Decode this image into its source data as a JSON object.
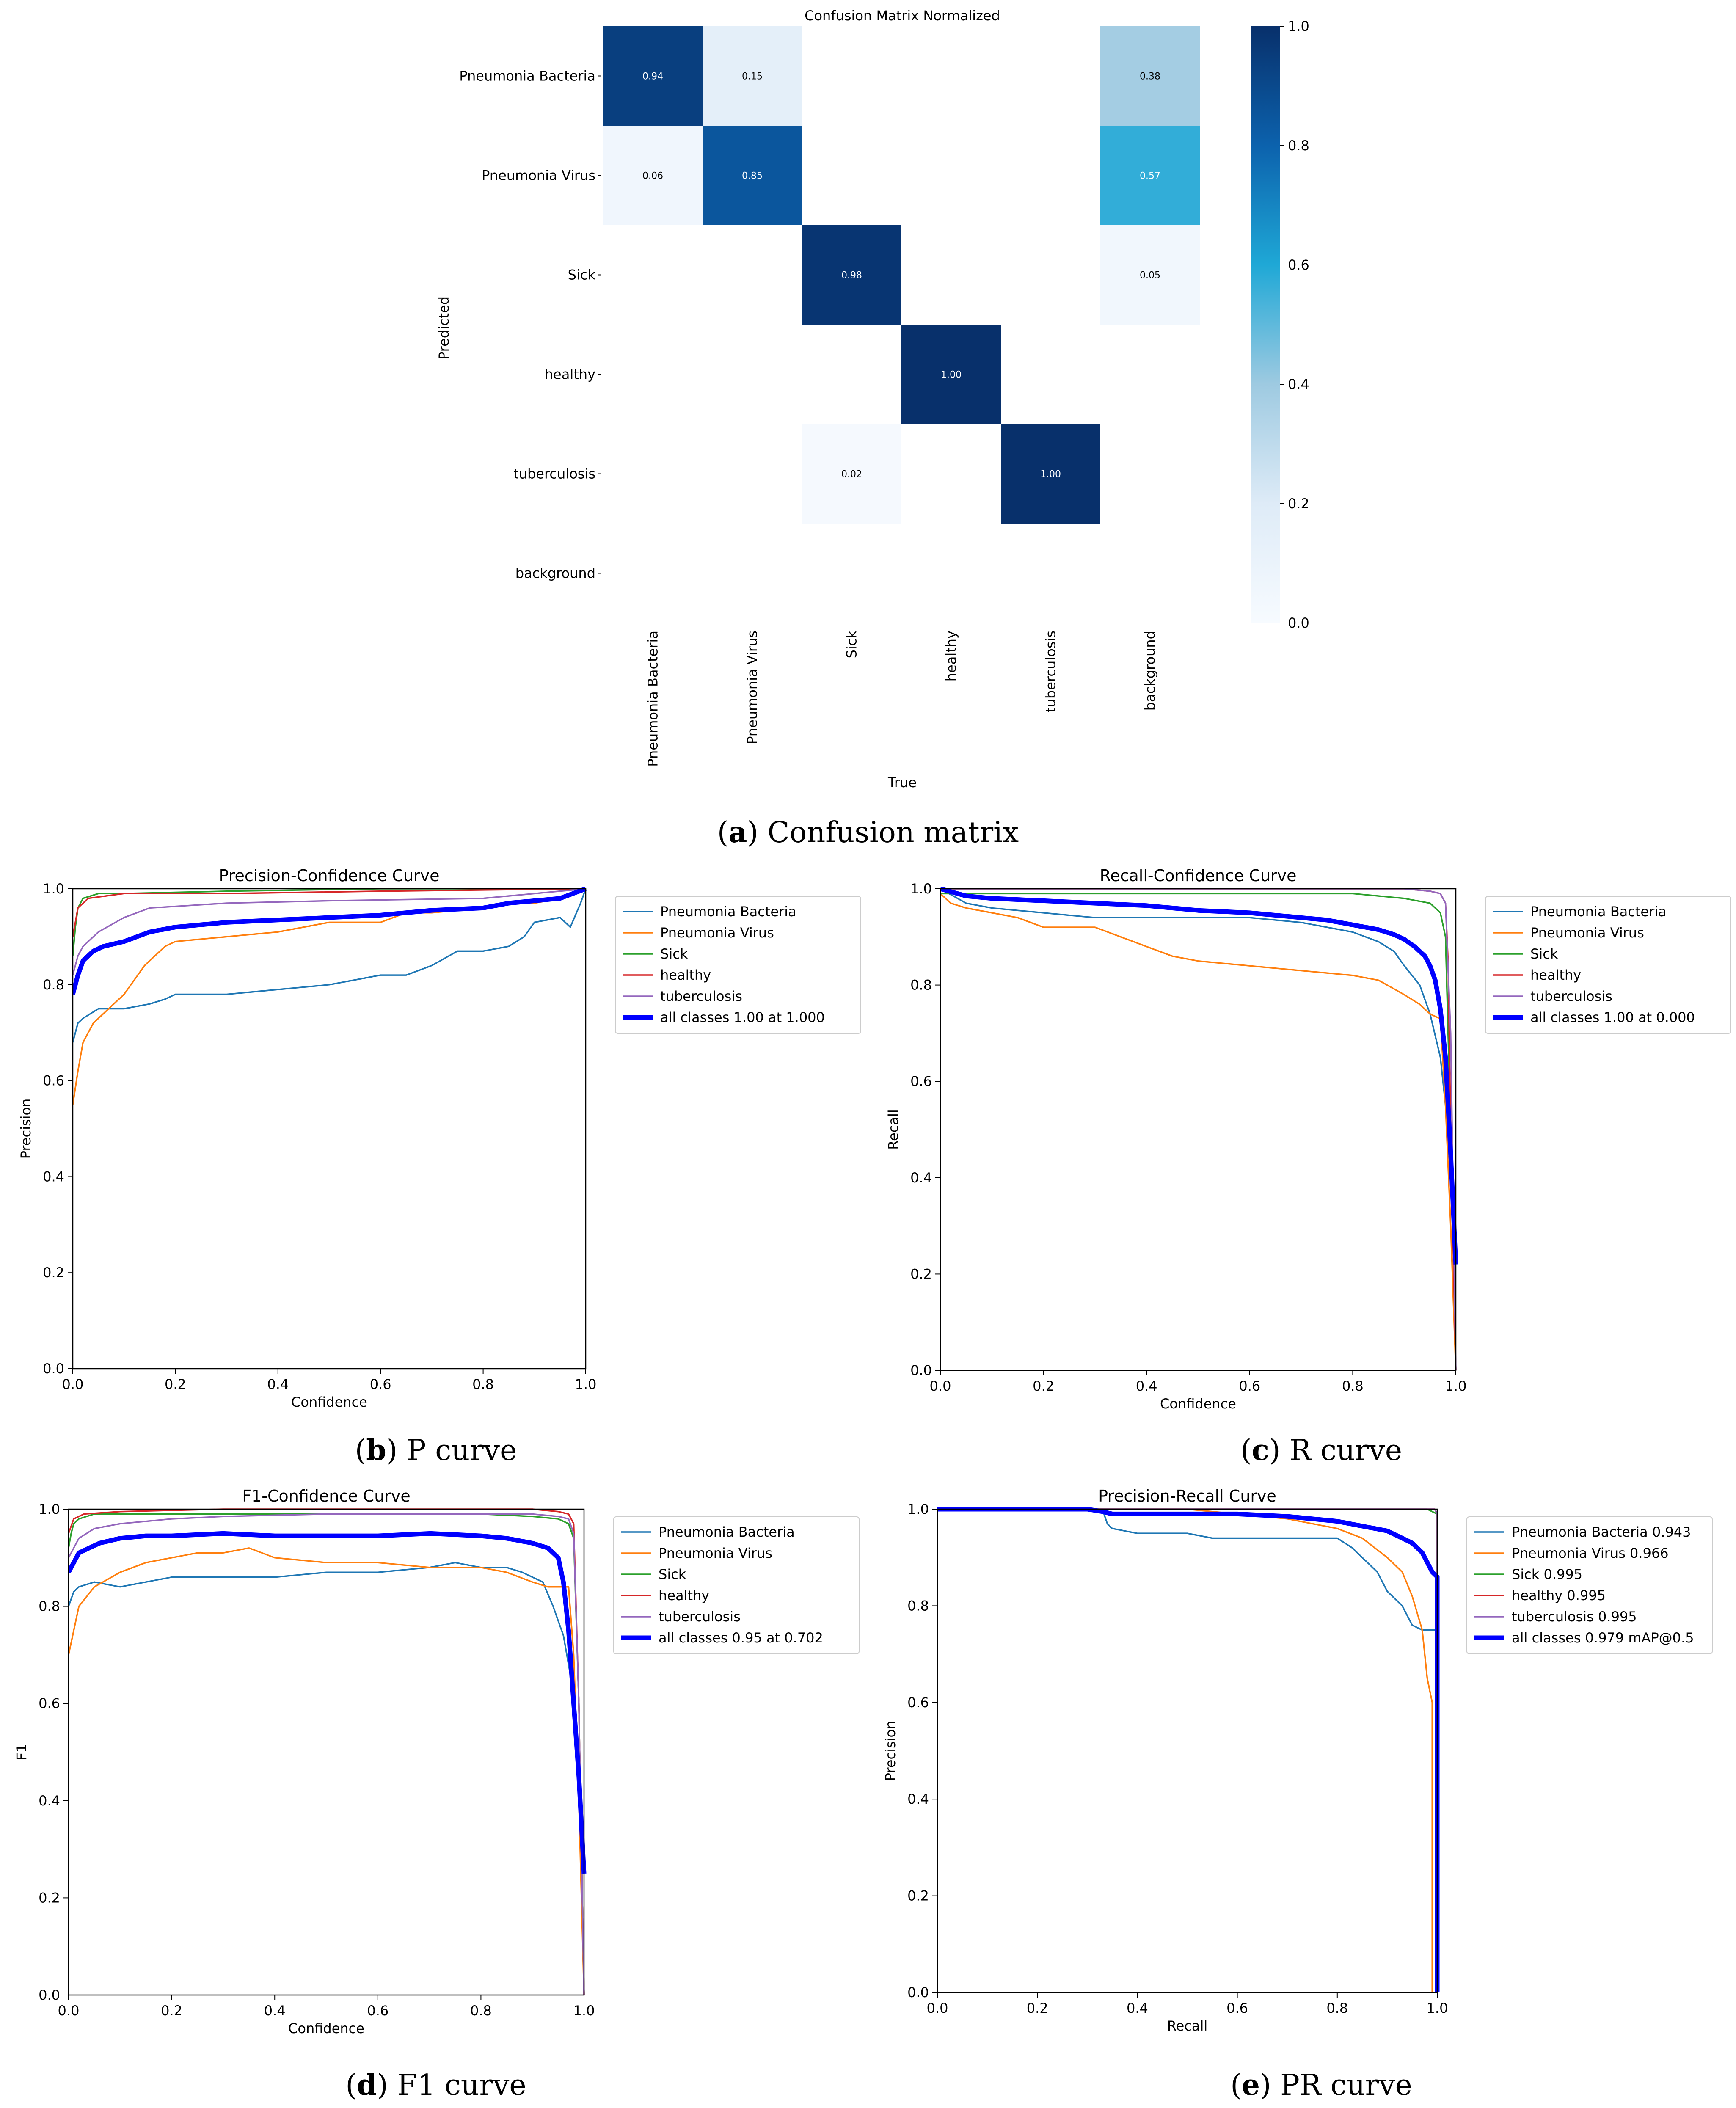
{
  "colors": {
    "Pneumonia Bacteria": "#1f77b4",
    "Pneumonia Virus": "#ff7f0e",
    "Sick": "#2ca02c",
    "healthy": "#d62728",
    "tuberculosis": "#9467bd",
    "all classes": "#0000ff",
    "cmap": [
      "#f7fbff",
      "#deebf7",
      "#9ecae1",
      "#1fa8d6",
      "#0c62ad",
      "#08306b"
    ]
  },
  "captions": {
    "a": {
      "letter": "a",
      "text": " Confusion matrix"
    },
    "b": {
      "letter": "b",
      "text": " P curve"
    },
    "c": {
      "letter": "c",
      "text": " R curve"
    },
    "d": {
      "letter": "d",
      "text": " F1 curve"
    },
    "e": {
      "letter": "e",
      "text": " PR curve"
    }
  },
  "chart_data": [
    {
      "id": "confusion",
      "type": "heatmap",
      "title": "Confusion Matrix Normalized",
      "xlabel": "True",
      "ylabel": "Predicted",
      "row_labels": [
        "Pneumonia Bacteria",
        "Pneumonia Virus",
        "Sick",
        "healthy",
        "tuberculosis",
        "background"
      ],
      "col_labels": [
        "Pneumonia Bacteria",
        "Pneumonia Virus",
        "Sick",
        "healthy",
        "tuberculosis",
        "background"
      ],
      "matrix": [
        [
          0.94,
          0.15,
          null,
          null,
          null,
          0.38
        ],
        [
          0.06,
          0.85,
          null,
          null,
          null,
          0.57
        ],
        [
          null,
          null,
          0.98,
          null,
          null,
          0.05
        ],
        [
          null,
          null,
          null,
          1.0,
          null,
          null
        ],
        [
          null,
          null,
          0.02,
          null,
          1.0,
          null
        ],
        [
          null,
          null,
          null,
          null,
          null,
          null
        ]
      ],
      "colorbar": {
        "min": 0.0,
        "max": 1.0,
        "ticks": [
          "0.0",
          "0.2",
          "0.4",
          "0.6",
          "0.8",
          "1.0"
        ]
      }
    },
    {
      "id": "pcurve",
      "type": "line",
      "title": "Precision-Confidence Curve",
      "xlabel": "Confidence",
      "ylabel": "Precision",
      "xlim": [
        0,
        1
      ],
      "ylim": [
        0,
        1
      ],
      "xticks": [
        "0.0",
        "0.2",
        "0.4",
        "0.6",
        "0.8",
        "1.0"
      ],
      "yticks": [
        "0.0",
        "0.2",
        "0.4",
        "0.6",
        "0.8",
        "1.0"
      ],
      "legend_position": "outside-right",
      "series": [
        {
          "name": "Pneumonia Bacteria",
          "x": [
            0,
            0.01,
            0.02,
            0.05,
            0.1,
            0.15,
            0.18,
            0.2,
            0.3,
            0.4,
            0.5,
            0.55,
            0.6,
            0.65,
            0.7,
            0.75,
            0.8,
            0.85,
            0.88,
            0.9,
            0.95,
            0.97,
            0.99,
            1.0
          ],
          "y": [
            0.68,
            0.72,
            0.73,
            0.75,
            0.75,
            0.76,
            0.77,
            0.78,
            0.78,
            0.79,
            0.8,
            0.81,
            0.82,
            0.82,
            0.84,
            0.87,
            0.87,
            0.88,
            0.9,
            0.93,
            0.94,
            0.92,
            0.97,
            1.0
          ]
        },
        {
          "name": "Pneumonia Virus",
          "x": [
            0,
            0.01,
            0.02,
            0.04,
            0.06,
            0.1,
            0.14,
            0.18,
            0.2,
            0.3,
            0.4,
            0.5,
            0.6,
            0.65,
            0.7,
            0.8,
            0.85,
            0.9,
            0.95,
            1.0
          ],
          "y": [
            0.55,
            0.62,
            0.68,
            0.72,
            0.74,
            0.78,
            0.84,
            0.88,
            0.89,
            0.9,
            0.91,
            0.93,
            0.93,
            0.95,
            0.95,
            0.96,
            0.97,
            0.97,
            0.98,
            1.0
          ]
        },
        {
          "name": "Sick",
          "x": [
            0,
            0.005,
            0.01,
            0.02,
            0.05,
            0.1,
            0.3,
            0.6,
            1.0
          ],
          "y": [
            0.86,
            0.92,
            0.96,
            0.98,
            0.99,
            0.99,
            0.995,
            1.0,
            1.0
          ]
        },
        {
          "name": "healthy",
          "x": [
            0,
            0.01,
            0.03,
            0.1,
            0.3,
            0.6,
            1.0
          ],
          "y": [
            0.9,
            0.96,
            0.98,
            0.99,
            0.99,
            0.995,
            1.0
          ]
        },
        {
          "name": "tuberculosis",
          "x": [
            0,
            0.01,
            0.02,
            0.05,
            0.1,
            0.15,
            0.3,
            0.5,
            0.8,
            1.0
          ],
          "y": [
            0.82,
            0.86,
            0.88,
            0.91,
            0.94,
            0.96,
            0.97,
            0.975,
            0.98,
            1.0
          ]
        },
        {
          "name": "all classes 1.00 at 1.000",
          "x": [
            0,
            0.01,
            0.02,
            0.04,
            0.06,
            0.1,
            0.15,
            0.2,
            0.3,
            0.4,
            0.5,
            0.6,
            0.7,
            0.8,
            0.85,
            0.9,
            0.95,
            1.0
          ],
          "y": [
            0.78,
            0.82,
            0.85,
            0.87,
            0.88,
            0.89,
            0.91,
            0.92,
            0.93,
            0.935,
            0.94,
            0.945,
            0.955,
            0.96,
            0.97,
            0.975,
            0.98,
            1.0
          ],
          "bold": true
        }
      ]
    },
    {
      "id": "rcurve",
      "type": "line",
      "title": "Recall-Confidence Curve",
      "xlabel": "Confidence",
      "ylabel": "Recall",
      "xlim": [
        0,
        1
      ],
      "ylim": [
        0,
        1
      ],
      "xticks": [
        "0.0",
        "0.2",
        "0.4",
        "0.6",
        "0.8",
        "1.0"
      ],
      "yticks": [
        "0.0",
        "0.2",
        "0.4",
        "0.6",
        "0.8",
        "1.0"
      ],
      "legend_position": "outside-right",
      "series": [
        {
          "name": "Pneumonia Bacteria",
          "x": [
            0,
            0.05,
            0.1,
            0.2,
            0.3,
            0.4,
            0.5,
            0.6,
            0.7,
            0.75,
            0.8,
            0.85,
            0.88,
            0.9,
            0.93,
            0.95,
            0.97,
            0.98,
            0.99,
            1.0
          ],
          "y": [
            1.0,
            0.97,
            0.96,
            0.95,
            0.94,
            0.94,
            0.94,
            0.94,
            0.93,
            0.92,
            0.91,
            0.89,
            0.87,
            0.84,
            0.8,
            0.74,
            0.65,
            0.55,
            0.4,
            0.25
          ]
        },
        {
          "name": "Pneumonia Virus",
          "x": [
            0,
            0.02,
            0.05,
            0.1,
            0.15,
            0.2,
            0.3,
            0.35,
            0.4,
            0.45,
            0.5,
            0.6,
            0.7,
            0.8,
            0.85,
            0.9,
            0.93,
            0.95,
            0.97,
            0.98,
            0.99,
            1.0
          ],
          "y": [
            0.99,
            0.97,
            0.96,
            0.95,
            0.94,
            0.92,
            0.92,
            0.9,
            0.88,
            0.86,
            0.85,
            0.84,
            0.83,
            0.82,
            0.81,
            0.78,
            0.76,
            0.74,
            0.73,
            0.55,
            0.3,
            0.0
          ]
        },
        {
          "name": "Sick",
          "x": [
            0,
            0.1,
            0.3,
            0.5,
            0.7,
            0.8,
            0.9,
            0.95,
            0.97,
            0.98,
            0.99,
            1.0
          ],
          "y": [
            0.99,
            0.99,
            0.99,
            0.99,
            0.99,
            0.99,
            0.98,
            0.97,
            0.95,
            0.9,
            0.5,
            0.0
          ]
        },
        {
          "name": "healthy",
          "x": [
            0,
            0.2,
            0.5,
            0.8,
            0.9,
            0.95,
            0.97,
            0.98,
            0.985,
            0.99,
            1.0
          ],
          "y": [
            1.0,
            1.0,
            1.0,
            1.0,
            1.0,
            0.995,
            0.99,
            0.97,
            0.85,
            0.5,
            0.0
          ]
        },
        {
          "name": "tuberculosis",
          "x": [
            0,
            0.2,
            0.5,
            0.8,
            0.9,
            0.95,
            0.97,
            0.98,
            0.99,
            1.0
          ],
          "y": [
            1.0,
            1.0,
            1.0,
            1.0,
            1.0,
            0.995,
            0.99,
            0.97,
            0.7,
            0.0
          ]
        },
        {
          "name": "all classes 1.00 at 0.000",
          "x": [
            0,
            0.05,
            0.1,
            0.2,
            0.3,
            0.4,
            0.5,
            0.6,
            0.7,
            0.75,
            0.8,
            0.85,
            0.88,
            0.9,
            0.92,
            0.94,
            0.95,
            0.96,
            0.97,
            0.98,
            0.99,
            1.0
          ],
          "y": [
            1.0,
            0.985,
            0.98,
            0.975,
            0.97,
            0.965,
            0.955,
            0.95,
            0.94,
            0.935,
            0.925,
            0.915,
            0.905,
            0.895,
            0.88,
            0.86,
            0.84,
            0.81,
            0.75,
            0.65,
            0.45,
            0.22
          ],
          "bold": true
        }
      ]
    },
    {
      "id": "f1curve",
      "type": "line",
      "title": "F1-Confidence Curve",
      "xlabel": "Confidence",
      "ylabel": "F1",
      "xlim": [
        0,
        1
      ],
      "ylim": [
        0,
        1
      ],
      "xticks": [
        "0.0",
        "0.2",
        "0.4",
        "0.6",
        "0.8",
        "1.0"
      ],
      "yticks": [
        "0.0",
        "0.2",
        "0.4",
        "0.6",
        "0.8",
        "1.0"
      ],
      "legend_position": "outside-right",
      "series": [
        {
          "name": "Pneumonia Bacteria",
          "x": [
            0,
            0.01,
            0.02,
            0.05,
            0.1,
            0.15,
            0.2,
            0.3,
            0.4,
            0.5,
            0.6,
            0.7,
            0.75,
            0.8,
            0.85,
            0.88,
            0.9,
            0.92,
            0.94,
            0.96,
            0.98,
            1.0
          ],
          "y": [
            0.8,
            0.83,
            0.84,
            0.85,
            0.84,
            0.85,
            0.86,
            0.86,
            0.86,
            0.87,
            0.87,
            0.88,
            0.89,
            0.88,
            0.88,
            0.87,
            0.86,
            0.85,
            0.8,
            0.74,
            0.62,
            0.3
          ]
        },
        {
          "name": "Pneumonia Virus",
          "x": [
            0,
            0.01,
            0.02,
            0.05,
            0.1,
            0.15,
            0.2,
            0.25,
            0.3,
            0.35,
            0.4,
            0.5,
            0.6,
            0.7,
            0.8,
            0.85,
            0.9,
            0.93,
            0.95,
            0.97,
            0.98,
            0.99,
            1.0
          ],
          "y": [
            0.7,
            0.75,
            0.8,
            0.84,
            0.87,
            0.89,
            0.9,
            0.91,
            0.91,
            0.92,
            0.9,
            0.89,
            0.89,
            0.88,
            0.88,
            0.87,
            0.85,
            0.84,
            0.84,
            0.84,
            0.7,
            0.4,
            0.0
          ]
        },
        {
          "name": "Sick",
          "x": [
            0,
            0.005,
            0.01,
            0.02,
            0.05,
            0.1,
            0.3,
            0.6,
            0.8,
            0.9,
            0.95,
            0.97,
            0.98,
            0.99,
            1.0
          ],
          "y": [
            0.92,
            0.95,
            0.97,
            0.98,
            0.99,
            0.99,
            0.99,
            0.99,
            0.99,
            0.985,
            0.98,
            0.97,
            0.94,
            0.6,
            0.0
          ]
        },
        {
          "name": "healthy",
          "x": [
            0,
            0.01,
            0.03,
            0.1,
            0.3,
            0.6,
            0.9,
            0.95,
            0.97,
            0.98,
            0.99,
            1.0
          ],
          "y": [
            0.95,
            0.98,
            0.99,
            0.995,
            1.0,
            1.0,
            1.0,
            0.995,
            0.99,
            0.97,
            0.6,
            0.0
          ]
        },
        {
          "name": "tuberculosis",
          "x": [
            0,
            0.01,
            0.02,
            0.05,
            0.1,
            0.2,
            0.3,
            0.5,
            0.8,
            0.9,
            0.95,
            0.97,
            0.98,
            0.99,
            1.0
          ],
          "y": [
            0.9,
            0.92,
            0.94,
            0.96,
            0.97,
            0.98,
            0.985,
            0.99,
            0.99,
            0.99,
            0.985,
            0.98,
            0.95,
            0.6,
            0.0
          ]
        },
        {
          "name": "all classes 0.95 at 0.702",
          "x": [
            0,
            0.01,
            0.02,
            0.04,
            0.06,
            0.1,
            0.15,
            0.2,
            0.3,
            0.4,
            0.5,
            0.6,
            0.702,
            0.8,
            0.85,
            0.9,
            0.93,
            0.95,
            0.96,
            0.97,
            0.98,
            0.99,
            1.0
          ],
          "y": [
            0.87,
            0.89,
            0.91,
            0.92,
            0.93,
            0.94,
            0.945,
            0.945,
            0.95,
            0.945,
            0.945,
            0.945,
            0.95,
            0.945,
            0.94,
            0.93,
            0.92,
            0.9,
            0.85,
            0.75,
            0.6,
            0.45,
            0.25
          ],
          "bold": true
        }
      ]
    },
    {
      "id": "prcurve",
      "type": "line",
      "title": "Precision-Recall Curve",
      "xlabel": "Recall",
      "ylabel": "Precision",
      "xlim": [
        0,
        1
      ],
      "ylim": [
        0,
        1
      ],
      "xticks": [
        "0.0",
        "0.2",
        "0.4",
        "0.6",
        "0.8",
        "1.0"
      ],
      "yticks": [
        "0.0",
        "0.2",
        "0.4",
        "0.6",
        "0.8",
        "1.0"
      ],
      "legend_position": "outside-right",
      "series": [
        {
          "name": "Pneumonia Bacteria 0.943",
          "x": [
            0,
            0.33,
            0.34,
            0.35,
            0.4,
            0.5,
            0.55,
            0.6,
            0.7,
            0.8,
            0.83,
            0.85,
            0.88,
            0.9,
            0.93,
            0.95,
            0.97,
            1.0,
            1.0
          ],
          "y": [
            1.0,
            1.0,
            0.97,
            0.96,
            0.95,
            0.95,
            0.94,
            0.94,
            0.94,
            0.94,
            0.92,
            0.9,
            0.87,
            0.83,
            0.8,
            0.76,
            0.75,
            0.75,
            0.0
          ]
        },
        {
          "name": "Pneumonia Virus 0.966",
          "x": [
            0,
            0.5,
            0.6,
            0.7,
            0.75,
            0.8,
            0.85,
            0.9,
            0.93,
            0.95,
            0.97,
            0.98,
            0.99,
            0.99
          ],
          "y": [
            1.0,
            1.0,
            0.99,
            0.98,
            0.97,
            0.96,
            0.94,
            0.9,
            0.87,
            0.82,
            0.75,
            0.65,
            0.6,
            0.0
          ]
        },
        {
          "name": "Sick 0.995",
          "x": [
            0,
            0.9,
            0.98,
            1.0,
            1.0
          ],
          "y": [
            1.0,
            1.0,
            1.0,
            0.99,
            0.0
          ]
        },
        {
          "name": "healthy 0.995",
          "x": [
            0,
            0.95,
            0.995,
            1.0,
            1.0
          ],
          "y": [
            1.0,
            1.0,
            1.0,
            0.99,
            0.0
          ]
        },
        {
          "name": "tuberculosis 0.995",
          "x": [
            0,
            0.95,
            0.995,
            1.0,
            1.0
          ],
          "y": [
            1.0,
            1.0,
            1.0,
            0.99,
            0.0
          ]
        },
        {
          "name": "all classes 0.979 mAP@0.5",
          "x": [
            0,
            0.3,
            0.33,
            0.35,
            0.5,
            0.6,
            0.7,
            0.75,
            0.8,
            0.85,
            0.9,
            0.93,
            0.95,
            0.97,
            0.98,
            0.99,
            1.0,
            1.0
          ],
          "y": [
            1.0,
            1.0,
            0.995,
            0.99,
            0.99,
            0.99,
            0.985,
            0.98,
            0.975,
            0.965,
            0.955,
            0.94,
            0.93,
            0.91,
            0.89,
            0.87,
            0.86,
            0.0
          ],
          "bold": true
        }
      ]
    }
  ]
}
